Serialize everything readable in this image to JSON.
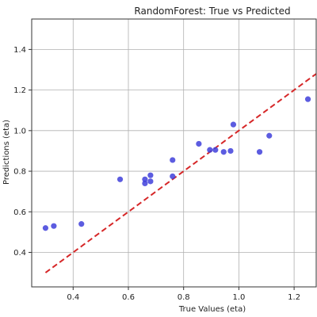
{
  "chart_data": {
    "type": "scatter",
    "title": "RandomForest: True vs Predicted",
    "xlabel": "True Values (eta)",
    "ylabel": "Predictions (eta)",
    "xlim": [
      0.25,
      1.28
    ],
    "ylim": [
      0.23,
      1.55
    ],
    "xticks": [
      0.4,
      0.6,
      0.8,
      1.0,
      1.2
    ],
    "yticks": [
      0.4,
      0.6,
      0.8,
      1.0,
      1.2,
      1.4
    ],
    "grid": true,
    "series": [
      {
        "type": "scatter",
        "color": "#3f3fdb",
        "points": [
          {
            "x": 0.3,
            "y": 0.52
          },
          {
            "x": 0.33,
            "y": 0.53
          },
          {
            "x": 0.43,
            "y": 0.54
          },
          {
            "x": 0.57,
            "y": 0.76
          },
          {
            "x": 0.66,
            "y": 0.74
          },
          {
            "x": 0.66,
            "y": 0.76
          },
          {
            "x": 0.68,
            "y": 0.78
          },
          {
            "x": 0.68,
            "y": 0.75
          },
          {
            "x": 0.76,
            "y": 0.855
          },
          {
            "x": 0.76,
            "y": 0.775
          },
          {
            "x": 0.855,
            "y": 0.935
          },
          {
            "x": 0.895,
            "y": 0.905
          },
          {
            "x": 0.915,
            "y": 0.905
          },
          {
            "x": 0.945,
            "y": 0.895
          },
          {
            "x": 0.97,
            "y": 0.9
          },
          {
            "x": 0.98,
            "y": 1.03
          },
          {
            "x": 1.075,
            "y": 0.895
          },
          {
            "x": 1.11,
            "y": 0.975
          },
          {
            "x": 1.25,
            "y": 1.155
          }
        ]
      },
      {
        "type": "line",
        "style": "dashed",
        "color": "#d62728",
        "points": [
          {
            "x": 0.3,
            "y": 0.3
          },
          {
            "x": 1.28,
            "y": 1.28
          }
        ]
      }
    ]
  }
}
